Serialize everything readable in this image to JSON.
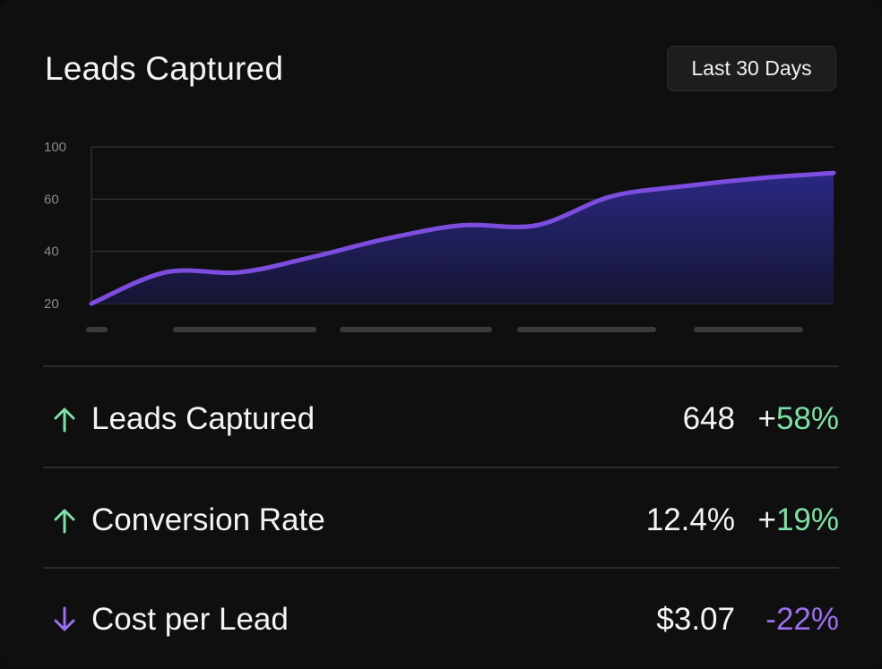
{
  "header": {
    "title": "Leads Captured",
    "range_label": "Last 30 Days"
  },
  "colors": {
    "line": "#7c4dde",
    "area_top": "#2c2a8a",
    "positive": "#7fe0a6",
    "negative": "#9b6ff0"
  },
  "chart_data": {
    "type": "area",
    "title": "",
    "xlabel": "",
    "ylabel": "",
    "ylim": [
      20,
      100
    ],
    "yticks": [
      20,
      40,
      60,
      100
    ],
    "grid": true,
    "legend": "none",
    "x_labels_obscured": true,
    "series": [
      {
        "x": [
          0,
          1,
          2,
          3,
          4,
          5,
          6,
          7,
          8,
          9,
          10
        ],
        "values": [
          20,
          32,
          32,
          38,
          45,
          50,
          50,
          62,
          70,
          76,
          80
        ]
      }
    ]
  },
  "metrics": [
    {
      "direction": "up",
      "icon": "arrow-up-icon",
      "label": "Leads Captured",
      "value": "648",
      "sign": "+",
      "change": "58%",
      "tone": "pos"
    },
    {
      "direction": "up",
      "icon": "arrow-up-icon",
      "label": "Conversion Rate",
      "value": "12.4%",
      "sign": "+",
      "change": "19%",
      "tone": "pos"
    },
    {
      "direction": "down",
      "icon": "arrow-down-icon",
      "label": "Cost per Lead",
      "value": "$3.07",
      "sign": "-",
      "change": "22%",
      "tone": "neg"
    }
  ]
}
